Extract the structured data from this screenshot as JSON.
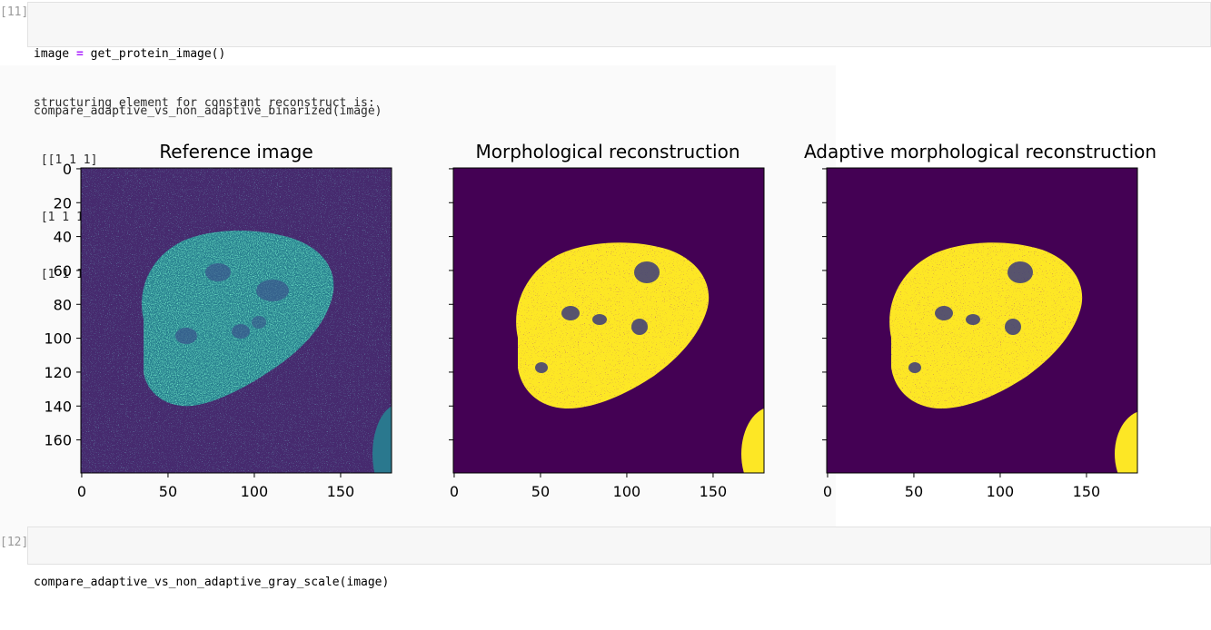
{
  "cells": [
    {
      "prompt": "[11]:",
      "lines": [
        "image = get_protein_image()",
        "compare_adaptive_vs_non_adaptive_binarized(image)"
      ]
    },
    {
      "prompt": "[12]:",
      "lines": [
        "compare_adaptive_vs_non_adaptive_gray_scale(image)"
      ]
    }
  ],
  "output": {
    "text_lines": [
      "structuring element for constant reconstruct is:",
      " [[1 1 1]",
      " [1 1 1]",
      " [1 1 1]]"
    ]
  },
  "plots": [
    {
      "title": "Reference image"
    },
    {
      "title": "Morphological reconstruction"
    },
    {
      "title": "Adaptive morphological reconstruction"
    }
  ],
  "colors": {
    "viridis_dark": "#440154",
    "viridis_bg": "#471365",
    "viridis_teal": "#2a788e",
    "viridis_green": "#22a884",
    "viridis_yellow": "#fde725"
  },
  "chart_data": {
    "type": "heatmap",
    "panels": [
      {
        "title": "Reference image",
        "colormap": "viridis"
      },
      {
        "title": "Morphological reconstruction",
        "colormap": "viridis"
      },
      {
        "title": "Adaptive morphological reconstruction",
        "colormap": "viridis"
      }
    ],
    "image_shape": [
      180,
      180
    ],
    "xticks": [
      0,
      50,
      100,
      150
    ],
    "yticks": [
      0,
      20,
      40,
      60,
      80,
      100,
      120,
      140,
      160
    ],
    "y_ticklabels_shown_on": "Reference image",
    "grid": false
  }
}
